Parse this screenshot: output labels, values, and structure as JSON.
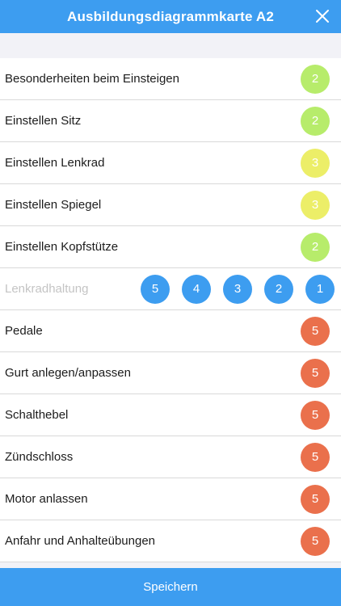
{
  "header": {
    "title": "Ausbildungsdiagrammkarte A2",
    "close_icon": "close-icon"
  },
  "colors": {
    "accent": "#3d9df0",
    "grade2": "#b7ec6b",
    "grade3": "#ecee68",
    "grade5": "#ea704c"
  },
  "items": [
    {
      "label": "Besonderheiten beim Einsteigen",
      "value": "2",
      "color": "#b7ec6b"
    },
    {
      "label": "Einstellen Sitz",
      "value": "2",
      "color": "#b7ec6b"
    },
    {
      "label": "Einstellen Lenkrad",
      "value": "3",
      "color": "#ecee68"
    },
    {
      "label": "Einstellen Spiegel",
      "value": "3",
      "color": "#ecee68"
    },
    {
      "label": "Einstellen Kopfstütze",
      "value": "2",
      "color": "#b7ec6b"
    },
    {
      "label": "Lenkradhaltung",
      "options": [
        "5",
        "4",
        "3",
        "2",
        "1"
      ]
    },
    {
      "label": "Pedale",
      "value": "5",
      "color": "#ea704c"
    },
    {
      "label": "Gurt anlegen/anpassen",
      "value": "5",
      "color": "#ea704c"
    },
    {
      "label": "Schalthebel",
      "value": "5",
      "color": "#ea704c"
    },
    {
      "label": "Zündschloss",
      "value": "5",
      "color": "#ea704c"
    },
    {
      "label": "Motor anlassen",
      "value": "5",
      "color": "#ea704c"
    },
    {
      "label": "Anfahr und Anhalteübungen",
      "value": "5",
      "color": "#ea704c"
    }
  ],
  "footer": {
    "save_label": "Speichern"
  }
}
